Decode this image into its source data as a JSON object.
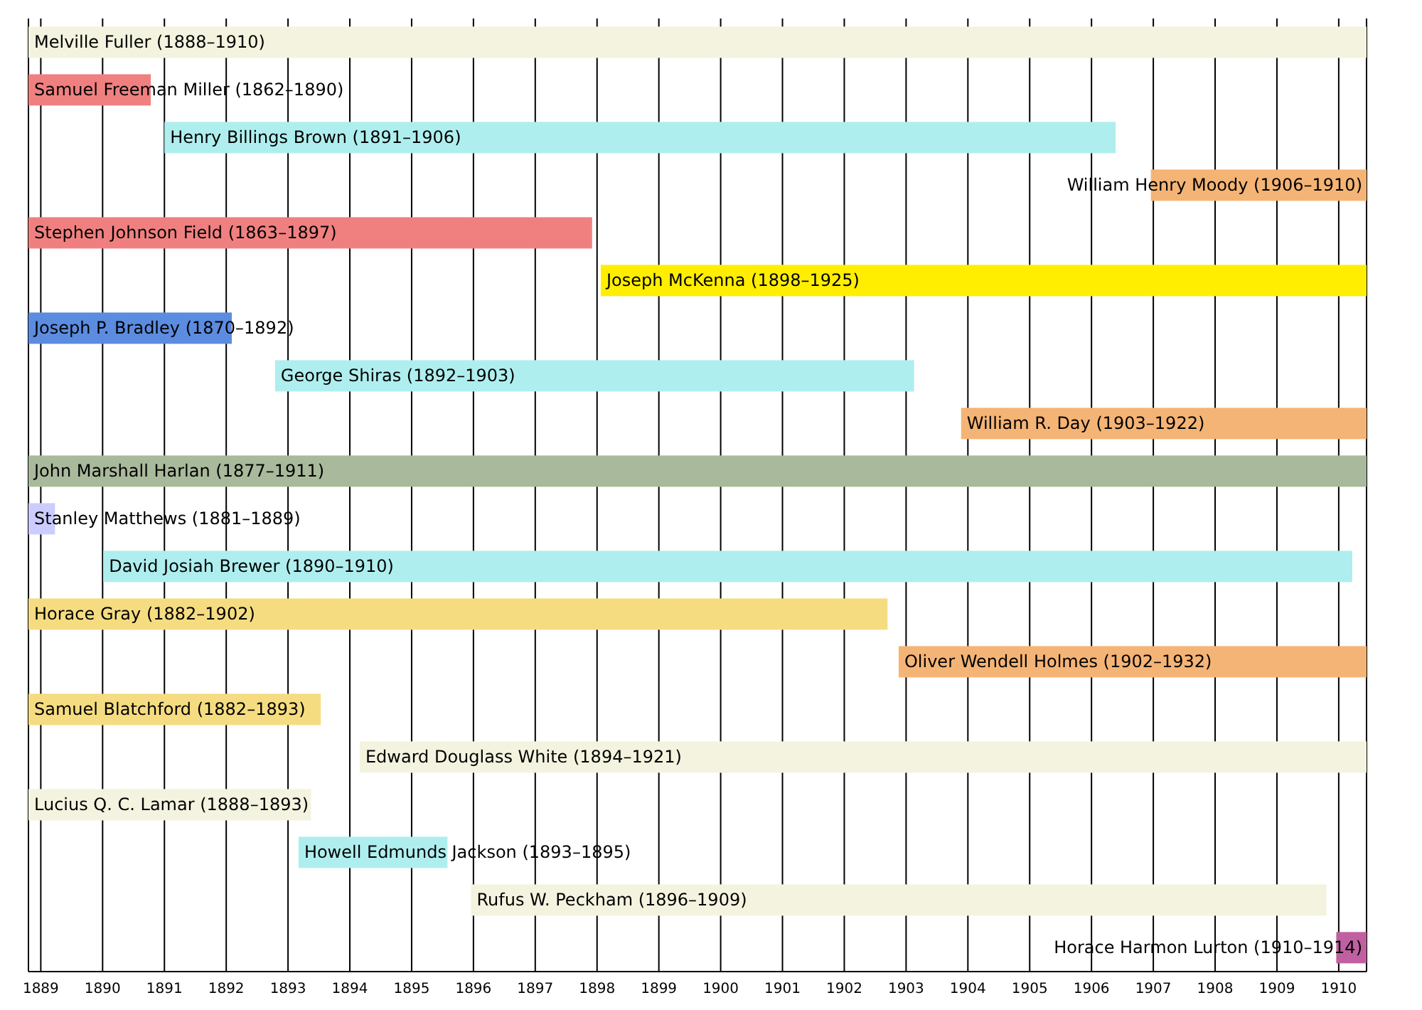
{
  "chart_data": {
    "type": "bar",
    "orientation": "horizontal",
    "grid": "x",
    "categories": [
      "Melville Fuller (1888–1910)",
      "Samuel Freeman Miller (1862–1890)",
      "Henry Billings Brown (1891–1906)",
      "William Henry Moody (1906–1910)",
      "Stephen Johnson Field (1863–1897)",
      "Joseph McKenna (1898–1925)",
      "Joseph P. Bradley (1870–1892)",
      "George Shiras (1892–1903)",
      "William R. Day (1903–1922)",
      "John Marshall Harlan (1877–1911)",
      "Stanley Matthews (1881–1889)",
      "David Josiah Brewer (1890–1910)",
      "Horace Gray (1882–1902)",
      "Oliver Wendell Holmes (1902–1932)",
      "Samuel Blatchford (1882–1893)",
      "Edward Douglass White (1894–1921)",
      "Lucius Q. C. Lamar (1888–1893)",
      "Howell Edmunds Jackson (1893–1895)",
      "Rufus W. Peckham (1896–1909)",
      "Horace Harmon Lurton (1910–1914)"
    ],
    "base": [
      1888.8,
      1888.8,
      1891.0,
      1906.96,
      1888.8,
      1898.06,
      1888.8,
      1892.79,
      1903.89,
      1888.8,
      1888.8,
      1890.01,
      1888.8,
      1902.88,
      1888.8,
      1894.16,
      1888.8,
      1893.17,
      1895.96,
      1909.96
    ],
    "values": [
      21.65,
      1.98,
      15.39,
      3.49,
      9.12,
      12.39,
      3.29,
      10.34,
      6.56,
      21.65,
      0.43,
      20.21,
      13.9,
      7.57,
      4.73,
      16.29,
      4.57,
      2.41,
      13.84,
      0.49
    ],
    "colors": [
      "#f3f3df",
      "#f08080",
      "#afeeee",
      "#f4b476",
      "#f08080",
      "#ffee00",
      "#5b8ce0",
      "#afeeee",
      "#f4b476",
      "#a9b99b",
      "#ccccff",
      "#afeeee",
      "#f5dc80",
      "#f4b476",
      "#f5dc80",
      "#f3f3df",
      "#f3f3df",
      "#afeeee",
      "#f3f3df",
      "#c060a0"
    ],
    "xlim": [
      1888.8,
      1910.45
    ],
    "xticks": [
      1889,
      1890,
      1891,
      1892,
      1893,
      1894,
      1895,
      1896,
      1897,
      1898,
      1899,
      1900,
      1901,
      1902,
      1903,
      1904,
      1905,
      1906,
      1907,
      1908,
      1909,
      1910
    ]
  }
}
